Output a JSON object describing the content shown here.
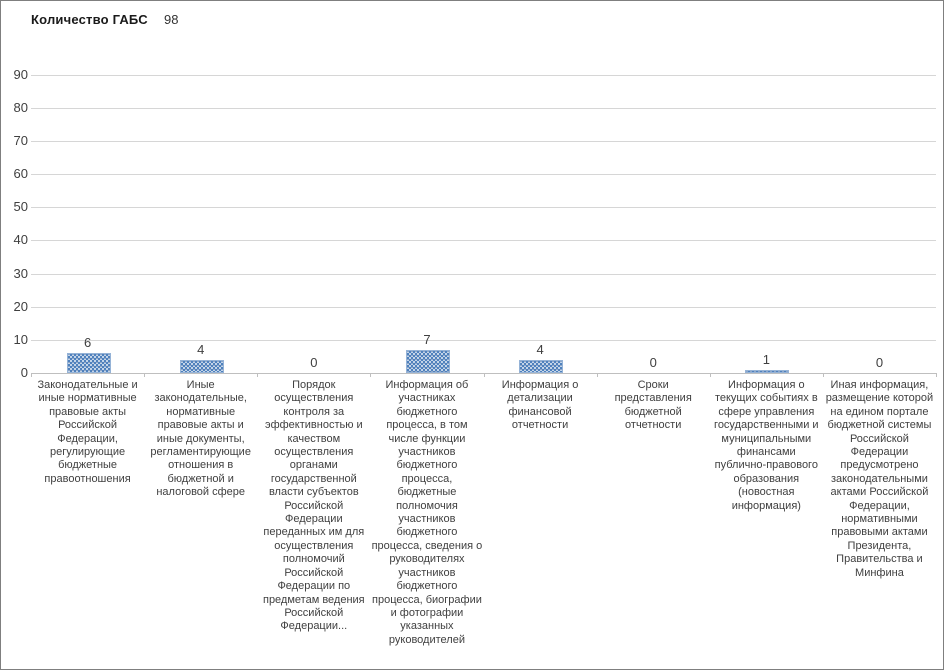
{
  "title": {
    "text": "Количество ГАБС",
    "value": "98"
  },
  "chart_data": {
    "type": "bar",
    "title": "Количество ГАБС",
    "title_value": "98",
    "categories": [
      "Законодательные и иные нормативные правовые акты Российской Федерации, регулирующие бюджетные правоотношения",
      "Иные законодательные, нормативные правовые акты и иные документы, регламентирующие отношения в бюджетной и налоговой сфере",
      "Порядок осуществления контроля за эффективностью и качеством осуществления органами государственной власти субъектов Российской Федерации переданных им для осуществления полномочий Российской Федерации по предметам ведения Российской Федерации...",
      "Информация об участниках бюджетного процесса, в том числе функции участников бюджетного процесса, бюджетные полномочия участников бюджетного процесса, сведения о руководителях участников бюджетного процесса, биографии и фотографии указанных руководителей",
      "Информация о детализации финансовой отчетности",
      "Сроки представления бюджетной отчетности",
      "Информация о текущих событиях в сфере управления государственными и муниципальными финансами публично-правового образования (новостная информация)",
      "Иная информация, размещение которой на едином портале бюджетной системы Российской Федерации предусмотрено законодательными актами Российской Федерации, нормативными правовыми актами Президента, Правительства и Минфина"
    ],
    "values": [
      6,
      4,
      0,
      7,
      4,
      0,
      1,
      0
    ],
    "ylim": [
      0,
      95
    ],
    "yticks": [
      0,
      10,
      20,
      30,
      40,
      50,
      60,
      70,
      80,
      90
    ],
    "grid": true,
    "legend": "none",
    "data_labels": true,
    "bar_color": "#4f81bd",
    "bar_pattern": "checker",
    "gridline_color": "#d6d6d6"
  }
}
